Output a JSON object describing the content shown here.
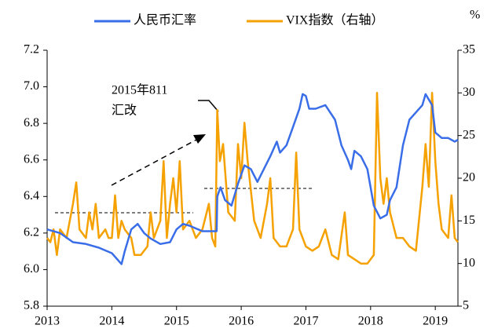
{
  "chart_data": {
    "type": "line",
    "legend": "top",
    "y2_unit": "%",
    "annotation": [
      "2015年811",
      "汇改"
    ],
    "xlim": [
      2013,
      2019.35
    ],
    "xticks": [
      2013,
      2014,
      2015,
      2016,
      2017,
      2018,
      2019
    ],
    "ylim": [
      5.8,
      7.2
    ],
    "yticks": [
      5.8,
      {
        "value": 6,
        "label": "6.0"
      },
      6.2,
      6.4,
      6.6,
      6.8,
      {
        "value": 7,
        "label": "7.0"
      },
      7.2
    ],
    "y2lim": [
      5,
      35
    ],
    "y2ticks": [
      5,
      10,
      15,
      20,
      25,
      30,
      35
    ],
    "series": [
      {
        "name": "人民币汇率",
        "color": "#3a6ee8",
        "x": [
          2013.0,
          2013.2,
          2013.4,
          2013.6,
          2013.8,
          2014.0,
          2014.1,
          2014.15,
          2014.2,
          2014.3,
          2014.4,
          2014.5,
          2014.6,
          2014.75,
          2014.9,
          2015.0,
          2015.1,
          2015.2,
          2015.4,
          2015.55,
          2015.62,
          2015.63,
          2015.68,
          2015.75,
          2015.85,
          2015.95,
          2016.05,
          2016.15,
          2016.25,
          2016.35,
          2016.45,
          2016.55,
          2016.6,
          2016.7,
          2016.8,
          2016.9,
          2016.95,
          2017.0,
          2017.05,
          2017.15,
          2017.3,
          2017.45,
          2017.55,
          2017.65,
          2017.7,
          2017.75,
          2017.85,
          2017.95,
          2018.05,
          2018.15,
          2018.25,
          2018.3,
          2018.4,
          2018.5,
          2018.6,
          2018.7,
          2018.8,
          2018.85,
          2018.95,
          2019.0,
          2019.1,
          2019.2,
          2019.3,
          2019.35
        ],
        "values": [
          6.22,
          6.2,
          6.15,
          6.14,
          6.12,
          6.09,
          6.05,
          6.03,
          6.1,
          6.22,
          6.25,
          6.2,
          6.17,
          6.14,
          6.15,
          6.22,
          6.25,
          6.24,
          6.21,
          6.21,
          6.21,
          6.4,
          6.45,
          6.38,
          6.35,
          6.47,
          6.57,
          6.55,
          6.48,
          6.55,
          6.62,
          6.7,
          6.64,
          6.68,
          6.78,
          6.88,
          6.96,
          6.95,
          6.88,
          6.88,
          6.9,
          6.82,
          6.68,
          6.6,
          6.55,
          6.65,
          6.62,
          6.55,
          6.35,
          6.28,
          6.3,
          6.38,
          6.45,
          6.68,
          6.82,
          6.86,
          6.9,
          6.96,
          6.9,
          6.75,
          6.72,
          6.72,
          6.7,
          6.71
        ]
      },
      {
        "name": "VIX指数（右轴）",
        "color": "#f5a100",
        "axis": "y2",
        "x": [
          2013.0,
          2013.05,
          2013.1,
          2013.15,
          2013.2,
          2013.3,
          2013.4,
          2013.45,
          2013.5,
          2013.6,
          2013.65,
          2013.7,
          2013.75,
          2013.8,
          2013.9,
          2013.95,
          2014.0,
          2014.05,
          2014.1,
          2014.15,
          2014.2,
          2014.3,
          2014.35,
          2014.45,
          2014.55,
          2014.6,
          2014.65,
          2014.75,
          2014.8,
          2014.85,
          2014.9,
          2014.95,
          2015.0,
          2015.05,
          2015.1,
          2015.2,
          2015.3,
          2015.4,
          2015.5,
          2015.55,
          2015.6,
          2015.63,
          2015.67,
          2015.72,
          2015.8,
          2015.9,
          2015.95,
          2016.0,
          2016.05,
          2016.1,
          2016.2,
          2016.3,
          2016.4,
          2016.45,
          2016.5,
          2016.6,
          2016.7,
          2016.8,
          2016.85,
          2016.9,
          2017.0,
          2017.1,
          2017.2,
          2017.3,
          2017.4,
          2017.5,
          2017.6,
          2017.65,
          2017.75,
          2017.85,
          2017.95,
          2018.05,
          2018.1,
          2018.15,
          2018.2,
          2018.25,
          2018.3,
          2018.4,
          2018.5,
          2018.6,
          2018.7,
          2018.8,
          2018.85,
          2018.9,
          2018.95,
          2019.0,
          2019.05,
          2019.1,
          2019.2,
          2019.25,
          2019.3,
          2019.35
        ],
        "values": [
          13,
          12.5,
          14,
          11,
          14,
          13,
          17,
          19.5,
          14,
          13,
          16,
          14,
          17,
          13,
          14,
          13,
          13,
          18,
          13,
          15,
          14,
          13,
          11,
          11,
          12,
          16,
          13,
          15,
          22,
          13,
          17,
          20,
          16,
          22,
          14,
          15,
          13,
          14,
          17,
          13,
          12,
          28,
          22,
          24,
          16,
          15,
          24,
          20,
          26.5,
          22,
          15,
          13,
          17,
          20,
          13,
          12,
          12,
          14,
          23,
          14,
          12,
          11.5,
          12,
          14,
          11,
          10.5,
          16,
          11,
          10.5,
          10,
          10,
          11,
          30,
          20,
          17,
          20,
          16,
          13,
          13,
          12,
          11.5,
          19,
          24,
          19,
          30,
          22,
          17,
          14,
          13,
          18,
          13,
          12.5
        ]
      }
    ]
  }
}
